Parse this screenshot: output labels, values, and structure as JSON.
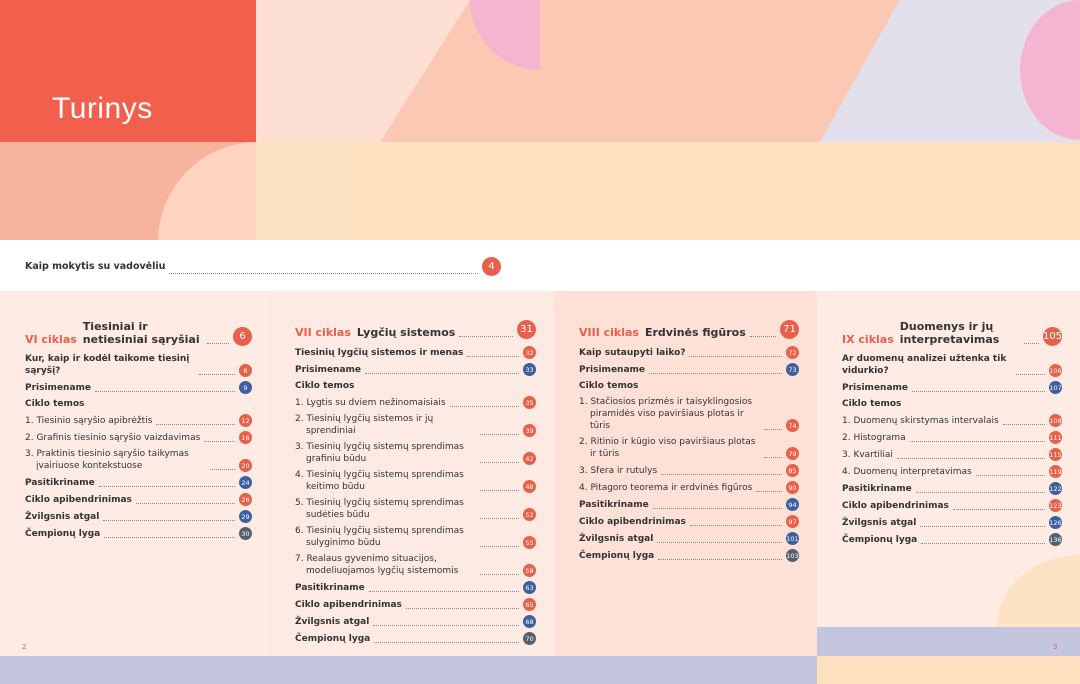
{
  "title": "Turinys",
  "intro": {
    "label": "Kaip mokytis su vadovėliu",
    "page": 4,
    "color": "#e8604a"
  },
  "columns": [
    {
      "cycle": "VI ciklas",
      "name": "Tiesiniai ir netiesiniai sąryšiai",
      "page": 6,
      "color": "#e8604a",
      "background": "#fdebe4",
      "entries": [
        {
          "label": "Kur, kaip ir kodėl taikome tiesinį sąryšį?",
          "page": 8,
          "color": "#e8604a",
          "bold": true
        },
        {
          "label": "Prisimename",
          "page": 9,
          "color": "#3d5fa0",
          "bold": true
        },
        {
          "label": "Ciklo temos",
          "bold": true
        },
        {
          "label": "1. Tiesinio sąryšio apibrėžtis",
          "page": 12,
          "color": "#e8604a"
        },
        {
          "label": "2. Grafinis tiesinio sąryšio vaizdavimas",
          "page": 16,
          "color": "#e8604a"
        },
        {
          "label": "3. Praktinis tiesinio sąryšio taikymas įvairiuose kontekstuose",
          "page": 20,
          "color": "#e8604a"
        },
        {
          "label": "Pasitikriname",
          "page": 24,
          "color": "#3d5fa0",
          "bold": true
        },
        {
          "label": "Ciklo apibendrinimas",
          "page": 26,
          "color": "#e8604a",
          "bold": true
        },
        {
          "label": "Žvilgsnis atgal",
          "page": 29,
          "color": "#3d5fa0",
          "bold": true
        },
        {
          "label": "Čempionų lyga",
          "page": 30,
          "color": "#555f6e",
          "bold": true
        }
      ]
    },
    {
      "cycle": "VII ciklas",
      "name": "Lygčių sistemos",
      "page": 31,
      "color": "#e8604a",
      "background": "#fdeae2",
      "entries": [
        {
          "label": "Tiesinių lygčių sistemos ir menas",
          "page": 32,
          "color": "#e8604a",
          "bold": true
        },
        {
          "label": "Prisimename",
          "page": 33,
          "color": "#3d5fa0",
          "bold": true
        },
        {
          "label": "Ciklo temos",
          "bold": true
        },
        {
          "label": "1. Lygtis su dviem nežinomaisiais",
          "page": 35,
          "color": "#e8604a"
        },
        {
          "label": "2. Tiesinių lygčių sistemos ir jų sprendiniai",
          "page": 39,
          "color": "#e8604a"
        },
        {
          "label": "3. Tiesinių lygčių sistemų sprendimas grafiniu būdu",
          "page": 42,
          "color": "#e8604a"
        },
        {
          "label": "4. Tiesinių lygčių sistemų sprendimas keitimo būdu",
          "page": 48,
          "color": "#e8604a"
        },
        {
          "label": "5. Tiesinių lygčių sistemų sprendimas sudėties būdu",
          "page": 52,
          "color": "#e8604a"
        },
        {
          "label": "6. Tiesinių lygčių sistemų sprendimas sulyginimo būdu",
          "page": 55,
          "color": "#e8604a"
        },
        {
          "label": "7. Realaus gyvenimo situacijos, modeliuojamos lygčių sistemomis",
          "page": 58,
          "color": "#e8604a"
        },
        {
          "label": "Pasitikriname",
          "page": 63,
          "color": "#3d5fa0",
          "bold": true
        },
        {
          "label": "Ciklo apibendrinimas",
          "page": 65,
          "color": "#e8604a",
          "bold": true
        },
        {
          "label": "Žvilgsnis atgal",
          "page": 68,
          "color": "#3d5fa0",
          "bold": true
        },
        {
          "label": "Čempionų lyga",
          "page": 70,
          "color": "#555f6e",
          "bold": true
        }
      ]
    },
    {
      "cycle": "VIII ciklas",
      "name": "Erdvinės figūros",
      "page": 71,
      "color": "#e8604a",
      "background": "#fde1d6",
      "entries": [
        {
          "label": "Kaip sutaupyti laiko?",
          "page": 72,
          "color": "#e8604a",
          "bold": true
        },
        {
          "label": "Prisimename",
          "page": 73,
          "color": "#3d5fa0",
          "bold": true
        },
        {
          "label": "Ciklo temos",
          "bold": true
        },
        {
          "label": "1. Stačiosios prizmės ir taisyklingosios piramidės viso paviršiaus plotas ir tūris",
          "page": 74,
          "color": "#e8604a"
        },
        {
          "label": "2. Ritinio ir kūgio viso paviršiaus plotas ir tūris",
          "page": 79,
          "color": "#e8604a"
        },
        {
          "label": "3. Sfera ir rutulys",
          "page": 85,
          "color": "#e8604a"
        },
        {
          "label": "4. Pitagoro teorema ir erdvinės figūros",
          "page": 90,
          "color": "#e8604a"
        },
        {
          "label": "Pasitikriname",
          "page": 94,
          "color": "#3d5fa0",
          "bold": true
        },
        {
          "label": "Ciklo apibendrinimas",
          "page": 97,
          "color": "#e8604a",
          "bold": true
        },
        {
          "label": "Žvilgsnis atgal",
          "page": 101,
          "color": "#3d5fa0",
          "bold": true
        },
        {
          "label": "Čempionų lyga",
          "page": 103,
          "color": "#555f6e",
          "bold": true
        }
      ]
    },
    {
      "cycle": "IX ciklas",
      "name": "Duomenys ir jų interpretavimas",
      "page": 105,
      "color": "#e8604a",
      "background": "#fdebe4",
      "entries": [
        {
          "label": "Ar duomenų analizei užtenka tik vidurkio?",
          "page": 106,
          "color": "#e8604a",
          "bold": true
        },
        {
          "label": "Prisimename",
          "page": 107,
          "color": "#3d5fa0",
          "bold": true
        },
        {
          "label": "Ciklo temos",
          "bold": true
        },
        {
          "label": "1. Duomenų skirstymas intervalais",
          "page": 108,
          "color": "#e8604a"
        },
        {
          "label": "2. Histograma",
          "page": 111,
          "color": "#e8604a"
        },
        {
          "label": "3. Kvartiliai",
          "page": 115,
          "color": "#e8604a"
        },
        {
          "label": "4. Duomenų interpretavimas",
          "page": 119,
          "color": "#e8604a"
        },
        {
          "label": "Pasitikriname",
          "page": 122,
          "color": "#3d5fa0",
          "bold": true
        },
        {
          "label": "Ciklo apibendrinimas",
          "page": 123,
          "color": "#e8604a",
          "bold": true
        },
        {
          "label": "Žvilgsnis atgal",
          "page": 126,
          "color": "#3d5fa0",
          "bold": true
        },
        {
          "label": "Čempionų lyga",
          "page": 136,
          "color": "#555f6e",
          "bold": true
        }
      ]
    }
  ],
  "footer": {
    "left": 2,
    "right": 3
  }
}
